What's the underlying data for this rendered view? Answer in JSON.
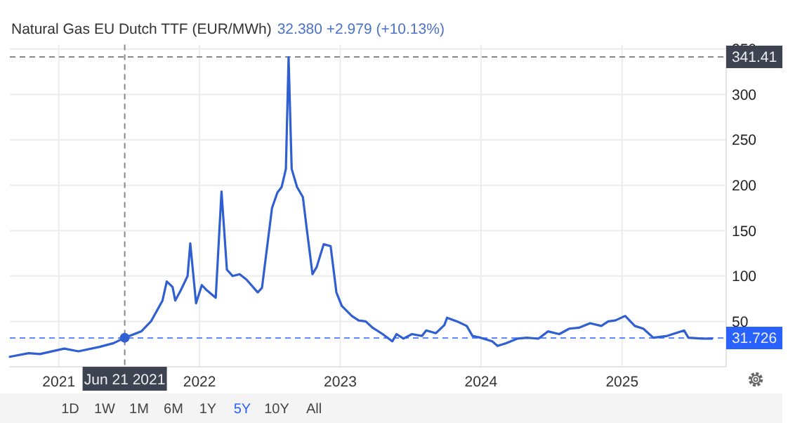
{
  "chart_data": {
    "type": "line",
    "title": "Natural Gas EU Dutch TTF (EUR/MWh)",
    "subtitle": "32.380  +2.979 (+10.13%)",
    "xlim": [
      "2020-08-27",
      "2025-09-28"
    ],
    "xticks": [
      "2021",
      "2022",
      "2023",
      "2024",
      "2025"
    ],
    "ylim": [
      0,
      355
    ],
    "yticks": [
      50,
      100,
      150,
      200,
      250,
      300,
      350
    ],
    "grid": true,
    "marker": "none",
    "line_style": "solid",
    "series": [
      {
        "color": "#2f5fd0",
        "x": [
          "2020-08-27",
          "2020-10-15",
          "2020-11-13",
          "2021-01-15",
          "2021-02-21",
          "2021-04-17",
          "2021-05-23",
          "2021-06-21",
          "2021-08-03",
          "2021-08-28",
          "2021-09-27",
          "2021-10-08",
          "2021-10-23",
          "2021-10-30",
          "2021-11-13",
          "2021-12-01",
          "2021-12-08",
          "2021-12-23",
          "2022-01-07",
          "2022-01-18",
          "2022-02-12",
          "2022-02-27",
          "2022-03-13",
          "2022-03-28",
          "2022-04-15",
          "2022-05-03",
          "2022-06-01",
          "2022-06-12",
          "2022-07-08",
          "2022-07-22",
          "2022-08-02",
          "2022-08-13",
          "2022-08-20",
          "2022-08-28",
          "2022-09-11",
          "2022-09-26",
          "2022-10-07",
          "2022-10-21",
          "2022-11-01",
          "2022-11-19",
          "2022-12-07",
          "2022-12-22",
          "2023-01-05",
          "2023-01-31",
          "2023-02-18",
          "2023-03-08",
          "2023-03-26",
          "2023-04-21",
          "2023-05-16",
          "2023-05-27",
          "2023-06-14",
          "2023-07-06",
          "2023-08-01",
          "2023-08-12",
          "2023-09-06",
          "2023-09-28",
          "2023-10-05",
          "2023-10-31",
          "2023-11-25",
          "2023-12-10",
          "2023-12-31",
          "2024-01-30",
          "2024-02-13",
          "2024-03-06",
          "2024-04-04",
          "2024-04-29",
          "2024-05-29",
          "2024-06-23",
          "2024-07-22",
          "2024-08-17",
          "2024-09-11",
          "2024-10-10",
          "2024-11-08",
          "2024-11-26",
          "2024-12-14",
          "2025-01-09",
          "2025-02-03",
          "2025-02-25",
          "2025-03-23",
          "2025-04-28",
          "2025-06-11",
          "2025-06-22",
          "2025-07-28",
          "2025-08-22"
        ],
        "values": [
          11,
          15,
          14,
          20,
          17,
          22,
          26,
          32,
          39,
          50,
          73,
          94,
          88,
          73,
          84,
          100,
          136,
          70,
          90,
          85,
          76,
          193,
          107,
          100,
          102,
          96,
          82,
          87,
          175,
          192,
          198,
          218,
          341,
          218,
          198,
          187,
          149,
          102,
          110,
          135,
          133,
          82,
          67,
          56,
          51,
          50,
          43,
          36,
          28,
          36,
          31,
          36,
          34,
          40,
          37,
          46,
          54,
          50,
          45,
          34,
          32,
          28,
          23,
          26,
          31,
          32,
          31,
          39,
          36,
          42,
          43,
          48,
          45,
          50,
          51,
          56,
          45,
          42,
          32,
          34,
          40,
          32,
          31,
          31
        ]
      },
      {
        "type": "scatter",
        "color": "#2f5fd0",
        "marker": "circle",
        "x": [
          "2021-06-21"
        ],
        "values": [
          32
        ]
      }
    ],
    "ref_lines": [
      {
        "axis": "y",
        "value": 341.41,
        "label": "341.41",
        "color": "#888888",
        "line_style": "dashed"
      },
      {
        "axis": "y",
        "value": 31.726,
        "label": "31.726",
        "color": "#2962ff",
        "line_style": "dashed"
      },
      {
        "axis": "x",
        "value": "2021-06-21",
        "label": "Jun 21 2021",
        "color": "#888888",
        "line_style": "dashed"
      }
    ],
    "annotations": [
      "1D",
      "1W",
      "1M",
      "6M",
      "1Y",
      "5Y",
      "10Y",
      "All"
    ]
  }
}
